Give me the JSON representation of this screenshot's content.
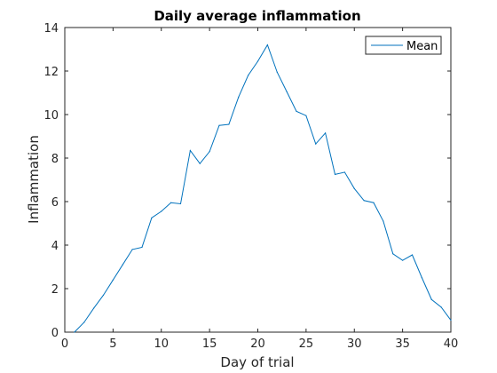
{
  "chart_data": {
    "type": "line",
    "title": "Daily average inflammation",
    "xlabel": "Day of trial",
    "ylabel": "Inflammation",
    "xlim": [
      0,
      40
    ],
    "ylim": [
      0,
      14
    ],
    "xticks": [
      0,
      5,
      10,
      15,
      20,
      25,
      30,
      35,
      40
    ],
    "yticks": [
      0,
      2,
      4,
      6,
      8,
      10,
      12,
      14
    ],
    "grid": false,
    "legend_position": "top-right",
    "series": [
      {
        "name": "Mean",
        "color": "#0072bd",
        "x": [
          1,
          2,
          3,
          4,
          5,
          6,
          7,
          8,
          9,
          10,
          11,
          12,
          13,
          14,
          15,
          16,
          17,
          18,
          19,
          20,
          21,
          22,
          23,
          24,
          25,
          26,
          27,
          28,
          29,
          30,
          31,
          32,
          33,
          34,
          35,
          36,
          37,
          38,
          39,
          40
        ],
        "values": [
          0,
          0.45,
          1.1,
          1.7,
          2.4,
          3.1,
          3.8,
          3.9,
          5.25,
          5.55,
          5.95,
          5.9,
          8.35,
          7.75,
          8.3,
          9.5,
          9.55,
          10.8,
          11.8,
          12.45,
          13.2,
          11.95,
          11.05,
          10.15,
          9.95,
          8.65,
          9.15,
          7.25,
          7.35,
          6.6,
          6.05,
          5.95,
          5.1,
          3.6,
          3.3,
          3.55,
          2.5,
          1.5,
          1.15,
          0.55
        ]
      }
    ]
  }
}
